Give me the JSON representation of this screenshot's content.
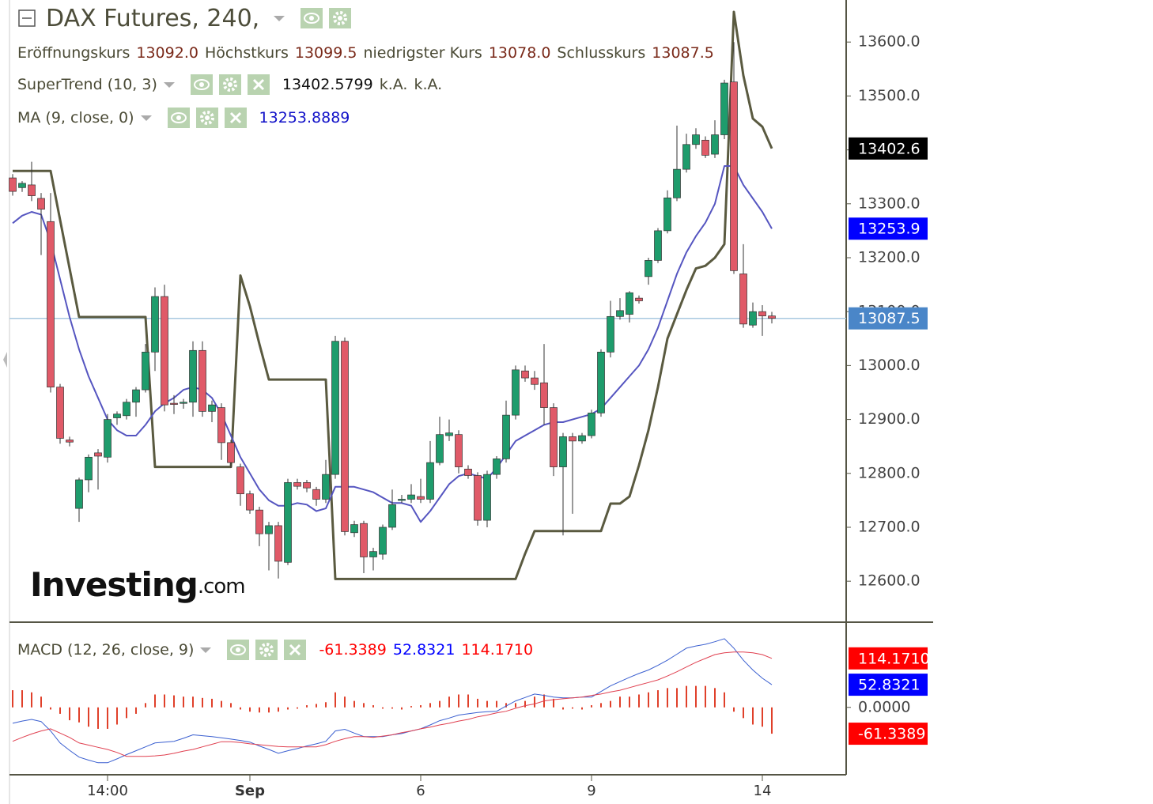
{
  "chart_data": [
    {
      "type": "candlestick",
      "title": "DAX Futures, 240,",
      "ohlc_legend": [
        {
          "name": "Eröffnungskurs",
          "value": "13092.0"
        },
        {
          "name": "Höchstkurs",
          "value": "13099.5"
        },
        {
          "name": "niedrigster Kurs",
          "value": "13078.0"
        },
        {
          "name": "Schlusskurs",
          "value": "13087.5"
        }
      ],
      "categories": [
        null,
        null,
        null,
        null,
        null,
        null,
        null,
        null,
        null,
        null,
        "14:00",
        null,
        null,
        null,
        null,
        null,
        null,
        null,
        null,
        null,
        null,
        null,
        null,
        null,
        null,
        "Sep",
        null,
        null,
        null,
        null,
        null,
        null,
        null,
        null,
        null,
        null,
        null,
        null,
        null,
        null,
        null,
        null,
        null,
        "6",
        null,
        null,
        null,
        null,
        null,
        null,
        null,
        null,
        null,
        null,
        null,
        null,
        null,
        null,
        null,
        null,
        null,
        "9",
        null,
        null,
        null,
        null,
        null,
        null,
        null,
        null,
        null,
        null,
        null,
        null,
        null,
        null,
        null,
        null,
        null,
        "14",
        null
      ],
      "ohlc": [
        [
          13348,
          13355,
          13315,
          13323
        ],
        [
          13330,
          13342,
          13322,
          13338
        ],
        [
          13335,
          13378,
          13305,
          13315
        ],
        [
          13310,
          13320,
          13205,
          13290
        ],
        [
          13267,
          13320,
          12950,
          12960
        ],
        [
          12960,
          12966,
          12855,
          12865
        ],
        [
          12862,
          12868,
          12850,
          12858
        ],
        [
          12735,
          12792,
          12710,
          12788
        ],
        [
          12788,
          12835,
          12765,
          12830
        ],
        [
          12838,
          12845,
          12770,
          12832
        ],
        [
          12830,
          12910,
          12820,
          12900
        ],
        [
          12903,
          12915,
          12890,
          12910
        ],
        [
          12907,
          12938,
          12900,
          12932
        ],
        [
          12932,
          12960,
          12905,
          12955
        ],
        [
          12955,
          13040,
          12950,
          13025
        ],
        [
          13025,
          13145,
          12990,
          13128
        ],
        [
          13128,
          13150,
          12915,
          12927
        ],
        [
          12930,
          12945,
          12910,
          12928
        ],
        [
          12930,
          12938,
          12920,
          12932
        ],
        [
          12932,
          13045,
          12905,
          13028
        ],
        [
          13028,
          13045,
          12905,
          12915
        ],
        [
          12915,
          12935,
          12895,
          12927
        ],
        [
          12922,
          12930,
          12825,
          12857
        ],
        [
          12857,
          12862,
          12810,
          12820
        ],
        [
          12812,
          12818,
          12740,
          12762
        ],
        [
          12762,
          12768,
          12725,
          12732
        ],
        [
          12732,
          12738,
          12665,
          12688
        ],
        [
          12688,
          12710,
          12620,
          12703
        ],
        [
          12703,
          12710,
          12605,
          12637
        ],
        [
          12635,
          12790,
          12630,
          12783
        ],
        [
          12783,
          12790,
          12770,
          12776
        ],
        [
          12783,
          12788,
          12765,
          12773
        ],
        [
          12770,
          12775,
          12740,
          12752
        ],
        [
          12752,
          12825,
          12745,
          12798
        ],
        [
          12798,
          13055,
          12790,
          13045
        ],
        [
          13045,
          13052,
          12685,
          12692
        ],
        [
          12690,
          12712,
          12682,
          12705
        ],
        [
          12707,
          12712,
          12615,
          12645
        ],
        [
          12645,
          12662,
          12620,
          12655
        ],
        [
          12650,
          12705,
          12640,
          12700
        ],
        [
          12700,
          12770,
          12695,
          12742
        ],
        [
          12750,
          12760,
          12745,
          12752
        ],
        [
          12752,
          12780,
          12745,
          12760
        ],
        [
          12757,
          12790,
          12745,
          12752
        ],
        [
          12752,
          12860,
          12745,
          12820
        ],
        [
          12820,
          12905,
          12815,
          12872
        ],
        [
          12870,
          12900,
          12860,
          12875
        ],
        [
          12872,
          12880,
          12800,
          12812
        ],
        [
          12808,
          12815,
          12790,
          12796
        ],
        [
          12796,
          12802,
          12703,
          12713
        ],
        [
          12713,
          12805,
          12700,
          12798
        ],
        [
          12798,
          12832,
          12790,
          12827
        ],
        [
          12827,
          12935,
          12820,
          12908
        ],
        [
          12908,
          13000,
          12900,
          12992
        ],
        [
          12990,
          13000,
          12970,
          12977
        ],
        [
          12977,
          12990,
          12955,
          12965
        ],
        [
          12968,
          13040,
          12890,
          12922
        ],
        [
          12922,
          12930,
          12795,
          12812
        ],
        [
          12812,
          12875,
          12685,
          12868
        ],
        [
          12868,
          12875,
          12725,
          12860
        ],
        [
          12860,
          12875,
          12855,
          12870
        ],
        [
          12870,
          12918,
          12865,
          12912
        ],
        [
          12912,
          13030,
          12905,
          13025
        ],
        [
          13025,
          13120,
          13015,
          13091
        ],
        [
          13091,
          13125,
          13085,
          13102
        ],
        [
          13095,
          13138,
          13080,
          13135
        ],
        [
          13125,
          13130,
          13115,
          13120
        ],
        [
          13165,
          13200,
          13150,
          13195
        ],
        [
          13195,
          13255,
          13190,
          13250
        ],
        [
          13250,
          13325,
          13245,
          13311
        ],
        [
          13311,
          13445,
          13305,
          13364
        ],
        [
          13364,
          13430,
          13358,
          13410
        ],
        [
          13410,
          13440,
          13402,
          13428
        ],
        [
          13418,
          13425,
          13385,
          13390
        ],
        [
          13392,
          13455,
          13385,
          13428
        ],
        [
          13428,
          13530,
          13420,
          13524
        ],
        [
          13526,
          13600,
          13170,
          13176
        ],
        [
          13170,
          13225,
          13070,
          13077
        ],
        [
          13075,
          13117,
          13070,
          13100
        ],
        [
          13100,
          13112,
          13055,
          13092
        ],
        [
          13092,
          13099.5,
          13078,
          13087.5
        ]
      ],
      "up_color": "#1e9c6c",
      "down_color": "#e05a68",
      "wick_color": "#333333",
      "lines": [
        {
          "name": "SuperTrend (10, 3)",
          "color": "#5a5a40",
          "width": 3,
          "label_color": "#111111",
          "extra_labels": [
            "k.A.",
            "k.A."
          ],
          "values": [
            13361,
            13361,
            13361,
            13361,
            13361,
            13270,
            13180,
            13090,
            13090,
            13090,
            13090,
            13090,
            13090,
            13090,
            13090,
            12812,
            12812,
            12812,
            12812,
            12812,
            12812,
            12812,
            12812,
            12812,
            13167,
            13110,
            13040,
            12974,
            12974,
            12974,
            12974,
            12974,
            12974,
            12974,
            12604,
            12604,
            12604,
            12604,
            12604,
            12604,
            12604,
            12604,
            12604,
            12604,
            12604,
            12604,
            12604,
            12604,
            12604,
            12604,
            12604,
            12604,
            12604,
            12604,
            12651,
            12693,
            12693,
            12693,
            12693,
            12693,
            12693,
            12693,
            12693,
            12744,
            12744,
            12757,
            12815,
            12880,
            12960,
            13050,
            13095,
            13140,
            13180,
            13185,
            13200,
            13225,
            13656,
            13538,
            13458,
            13443,
            13402.5799
          ]
        },
        {
          "name": "MA (9, close, 0)",
          "color": "#5555c0",
          "width": 2,
          "label_color": "#1010c8",
          "values": [
            13264,
            13278,
            13285,
            13280,
            13230,
            13160,
            13090,
            13030,
            12980,
            12940,
            12900,
            12880,
            12870,
            12870,
            12890,
            12915,
            12930,
            12940,
            12955,
            12960,
            12955,
            12940,
            12910,
            12870,
            12830,
            12800,
            12770,
            12750,
            12740,
            12740,
            12745,
            12742,
            12730,
            12735,
            12775,
            12775,
            12775,
            12770,
            12765,
            12755,
            12745,
            12745,
            12740,
            12710,
            12730,
            12755,
            12780,
            12795,
            12800,
            12795,
            12790,
            12810,
            12835,
            12860,
            12870,
            12880,
            12890,
            12895,
            12895,
            12900,
            12905,
            12910,
            12920,
            12940,
            12960,
            12980,
            13000,
            13030,
            13070,
            13120,
            13170,
            13210,
            13240,
            13265,
            13300,
            13370,
            13370,
            13335,
            13310,
            13285,
            13253.8889
          ]
        }
      ],
      "ylim": [
        12524,
        13678
      ],
      "yticks": [
        {
          "value": 12600,
          "label": "12600.0"
        },
        {
          "value": 12700,
          "label": "12700.0"
        },
        {
          "value": 12800,
          "label": "12800.0"
        },
        {
          "value": 12900,
          "label": "12900.0"
        },
        {
          "value": 13000,
          "label": "13000.0"
        },
        {
          "value": 13100,
          "label": "13100.0"
        },
        {
          "value": 13200,
          "label": "13200.0"
        },
        {
          "value": 13300,
          "label": "13300.0"
        },
        {
          "value": 13400,
          "label": "13400.0"
        },
        {
          "value": 13500,
          "label": "13500.0"
        },
        {
          "value": 13600,
          "label": "13600.0"
        }
      ],
      "price_tags": [
        {
          "value": 13402.5799,
          "label": "13402.6",
          "color": "#000000"
        },
        {
          "value": 13253.8889,
          "label": "13253.9",
          "color": "#0000ff"
        },
        {
          "value": 13087.5,
          "label": "13087.5",
          "color": "#4a86c8",
          "line": true
        }
      ],
      "watermark": {
        "brand": "Investing",
        "suffix": ".com"
      }
    },
    {
      "type": "macd",
      "title": "MACD (12, 26, close, 9)",
      "series": [
        {
          "type": "bar",
          "color": "#e0402a",
          "values": [
            40,
            40,
            35,
            25,
            -5,
            -15,
            -30,
            -35,
            -45,
            -50,
            -50,
            -40,
            -25,
            -15,
            10,
            30,
            30,
            28,
            25,
            25,
            22,
            20,
            15,
            10,
            -5,
            -10,
            -12,
            -12,
            -10,
            -5,
            -3,
            5,
            8,
            12,
            35,
            25,
            15,
            10,
            5,
            -3,
            -3,
            -5,
            3,
            5,
            10,
            15,
            25,
            30,
            30,
            20,
            15,
            15,
            10,
            10,
            15,
            25,
            30,
            20,
            -5,
            -3,
            -5,
            5,
            10,
            15,
            25,
            25,
            30,
            35,
            40,
            45,
            45,
            50,
            50,
            50,
            45,
            35,
            -10,
            -25,
            -40,
            -45,
            -61.3389
          ]
        },
        {
          "type": "line",
          "color": "#3a5fd0",
          "values": [
            -37,
            -32,
            -28,
            -33,
            -55,
            -83,
            -100,
            -116,
            -123,
            -129,
            -129,
            -120,
            -110,
            -101,
            -92,
            -83,
            -81,
            -79,
            -72,
            -64,
            -66,
            -68,
            -71,
            -74,
            -77,
            -81,
            -90,
            -98,
            -107,
            -101,
            -96,
            -90,
            -85,
            -79,
            -55,
            -51,
            -60,
            -68,
            -68,
            -68,
            -64,
            -61,
            -55,
            -50,
            -41,
            -31,
            -25,
            -18,
            -15,
            -12,
            -10,
            -9,
            3,
            15,
            23,
            31,
            28,
            24,
            22,
            22,
            24,
            24,
            37,
            50,
            60,
            70,
            79,
            87,
            98,
            110,
            124,
            138,
            143,
            147,
            153,
            160,
            138,
            110,
            87,
            68,
            52.8321
          ]
        },
        {
          "type": "line",
          "color": "#e04050",
          "values": [
            -79,
            -70,
            -62,
            -55,
            -50,
            -60,
            -70,
            -83,
            -88,
            -93,
            -98,
            -105,
            -114,
            -114,
            -114,
            -113,
            -111,
            -107,
            -102,
            -98,
            -92,
            -86,
            -80,
            -80,
            -82,
            -85,
            -87,
            -89,
            -91,
            -92,
            -92,
            -92,
            -92,
            -87,
            -79,
            -73,
            -68,
            -68,
            -70,
            -67,
            -64,
            -59,
            -55,
            -50,
            -46,
            -41,
            -37,
            -32,
            -28,
            -22,
            -18,
            -13,
            -9,
            -2,
            4,
            8,
            15,
            18,
            20,
            22,
            24,
            28,
            31,
            36,
            40,
            46,
            52,
            58,
            64,
            73,
            83,
            94,
            105,
            114,
            123,
            127,
            129,
            129,
            127,
            123,
            114.171
          ]
        }
      ],
      "ylim": [
        -157,
        193
      ],
      "yticks": [
        {
          "value": 0,
          "label": "0.0000"
        }
      ],
      "value_tags": [
        {
          "value": 114.171,
          "label": "114.1710",
          "color": "#ff0000"
        },
        {
          "value": 52.8321,
          "label": "52.8321",
          "color": "#0000ff"
        },
        {
          "value": -61.3389,
          "label": "-61.3389",
          "color": "#ff0000"
        }
      ]
    }
  ]
}
